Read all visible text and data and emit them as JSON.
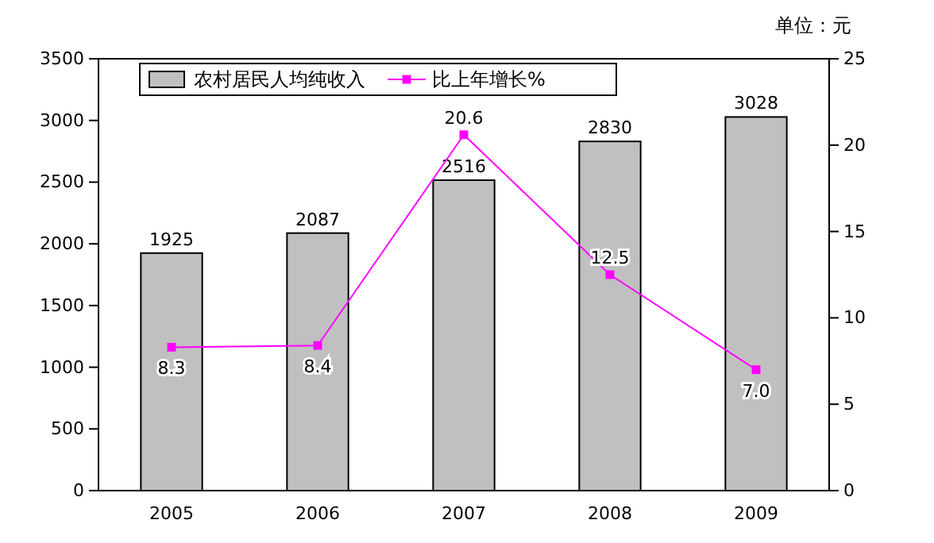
{
  "chart_data": {
    "type": "bar",
    "categories": [
      "2005",
      "2006",
      "2007",
      "2008",
      "2009"
    ],
    "series": [
      {
        "name": "农村居民人均纯收入",
        "color": "#c0c0c0",
        "values": [
          1925,
          2087,
          2516,
          2830,
          3028
        ]
      },
      {
        "name": "比上年增长%",
        "type": "line",
        "axis": "y2",
        "color": "#ff00ff",
        "values": [
          8.3,
          8.4,
          20.6,
          12.5,
          7.0
        ],
        "value_labels": [
          "8.3",
          "8.4",
          "20.6",
          "12.5",
          "7.0"
        ]
      }
    ],
    "ylim": [
      0,
      3500
    ],
    "yticks": [
      0,
      500,
      1000,
      1500,
      2000,
      2500,
      3000,
      3500
    ],
    "y2lim": [
      0,
      25
    ],
    "y2ticks": [
      0,
      5,
      10,
      15,
      20,
      25
    ],
    "data_labels": true,
    "marker": "square",
    "legend": "top left",
    "grid": false,
    "annotations": [
      "单位：元"
    ]
  }
}
